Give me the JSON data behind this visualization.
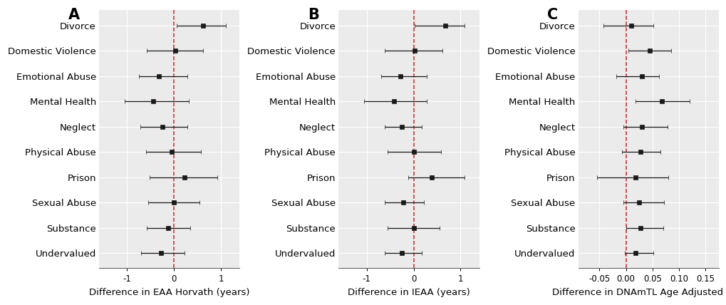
{
  "categories": [
    "Divorce",
    "Domestic Violence",
    "Emotional Abuse",
    "Mental Health",
    "Neglect",
    "Physical Abuse",
    "Prison",
    "Sexual Abuse",
    "Substance",
    "Undervalued"
  ],
  "panel_A": {
    "label": "A",
    "xlabel": "Difference in EAA Horvath (years)",
    "xlim": [
      -1.6,
      1.4
    ],
    "xticks": [
      -1,
      0,
      1
    ],
    "xtick_labels": [
      "-1",
      "0",
      "1"
    ],
    "coef": [
      0.62,
      0.02,
      -0.32,
      -0.45,
      -0.25,
      -0.05,
      0.22,
      0.0,
      -0.12,
      -0.28
    ],
    "ci_lo": [
      0.05,
      -0.58,
      -0.75,
      -1.05,
      -0.72,
      -0.6,
      -0.52,
      -0.55,
      -0.58,
      -0.7
    ],
    "ci_hi": [
      1.1,
      0.62,
      0.28,
      0.32,
      0.28,
      0.58,
      0.92,
      0.55,
      0.35,
      0.22
    ]
  },
  "panel_B": {
    "label": "B",
    "xlabel": "Difference in IEAA (years)",
    "xlim": [
      -1.6,
      1.4
    ],
    "xticks": [
      -1,
      0,
      1
    ],
    "xtick_labels": [
      "-1",
      "0",
      "1"
    ],
    "coef": [
      0.68,
      0.02,
      -0.28,
      -0.42,
      -0.25,
      0.0,
      0.38,
      -0.22,
      0.0,
      -0.25
    ],
    "ci_lo": [
      0.02,
      -0.62,
      -0.7,
      -1.05,
      -0.62,
      -0.55,
      -0.12,
      -0.62,
      -0.55,
      -0.62
    ],
    "ci_hi": [
      1.08,
      0.62,
      0.28,
      0.28,
      0.18,
      0.58,
      1.08,
      0.22,
      0.55,
      0.18
    ]
  },
  "panel_C": {
    "label": "C",
    "xlabel": "Difference in DNAmTL Age Adjusted (kb)",
    "xlim": [
      -0.09,
      0.175
    ],
    "xticks": [
      -0.05,
      0.0,
      0.05,
      0.1,
      0.15
    ],
    "xtick_labels": [
      "-0.05",
      "0.00",
      "0.05",
      "0.10",
      "0.15"
    ],
    "coef": [
      0.01,
      0.045,
      0.03,
      0.068,
      0.03,
      0.028,
      0.018,
      0.025,
      0.028,
      0.018
    ],
    "ci_lo": [
      -0.042,
      0.005,
      -0.018,
      0.018,
      -0.005,
      -0.008,
      -0.055,
      -0.005,
      0.0,
      -0.002
    ],
    "ci_hi": [
      0.052,
      0.085,
      0.062,
      0.12,
      0.078,
      0.065,
      0.08,
      0.072,
      0.07,
      0.052
    ]
  },
  "bg_color": "#ebebeb",
  "grid_color": "#ffffff",
  "point_color": "#1a1a1a",
  "ci_color": "#1a1a1a",
  "vline_color": "#cc2222",
  "point_size": 4.5,
  "label_fontsize": 9.5,
  "tick_fontsize": 8.5,
  "xlabel_fontsize": 9.5,
  "panel_label_fontsize": 15
}
